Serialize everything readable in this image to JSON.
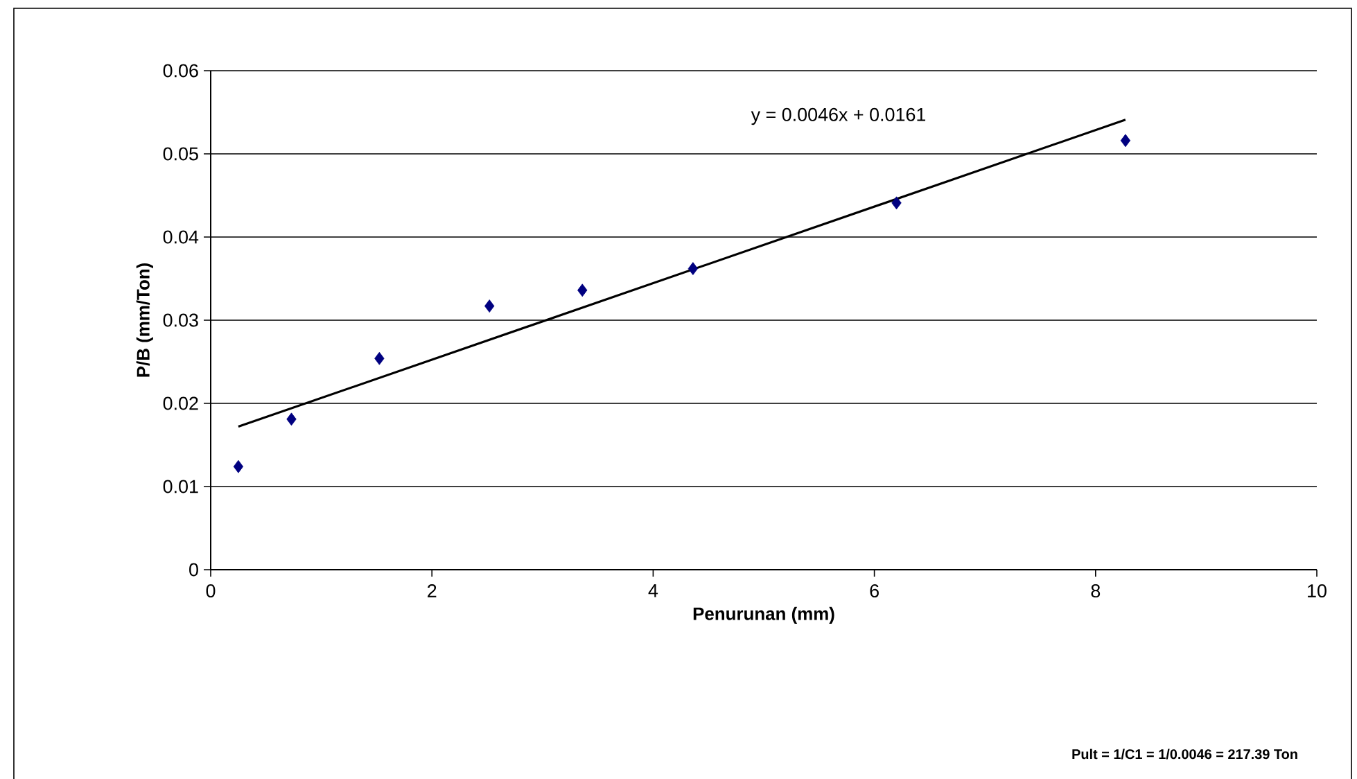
{
  "chart_data": {
    "type": "scatter",
    "xlabel": "Penurunan (mm)",
    "ylabel": "P/B (mm/Ton)",
    "x": [
      0.25,
      0.73,
      1.525,
      2.52,
      3.36,
      4.36,
      6.2,
      8.27
    ],
    "series": [
      {
        "color": "#000080",
        "marker": "diamond",
        "values": [
          0.0124,
          0.0181,
          0.0254,
          0.0317,
          0.0336,
          0.0362,
          0.0441,
          0.0516
        ]
      },
      {
        "type": "line",
        "color": "#000000",
        "marker": "none",
        "line_style": "solid",
        "x": [
          0.25,
          8.27
        ],
        "values": [
          0.0172,
          0.0541
        ]
      }
    ],
    "xlim": [
      0,
      10
    ],
    "xticks": [
      0,
      2,
      4,
      6,
      8,
      10
    ],
    "ylim": [
      0,
      0.06
    ],
    "yticks": [
      0,
      0.01,
      0.02,
      0.03,
      0.04,
      0.05,
      0.06
    ],
    "grid": "y",
    "annotations": [
      "y = 0.0046x + 0.0161",
      "**Pult = 1/C1 = 1/0.0046 = 217.39 Ton**"
    ]
  }
}
